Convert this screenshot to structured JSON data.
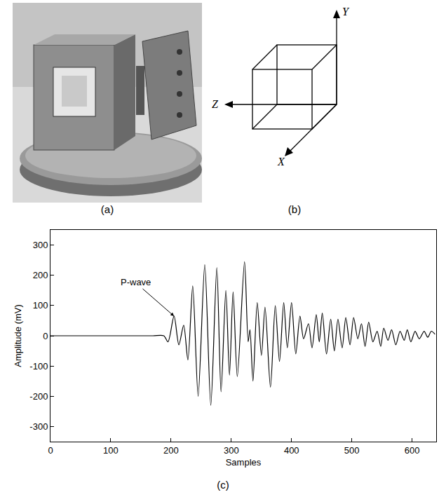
{
  "figure": {
    "panels": [
      "(a)",
      "(b)",
      "(c)"
    ],
    "diagram": {
      "x": "X",
      "y": "Y",
      "z": "Z"
    }
  },
  "chart_data": {
    "type": "line",
    "xlabel": "Samples",
    "ylabel": "Amplitude (mV)",
    "x": [
      0,
      60,
      120,
      170,
      188,
      195,
      205,
      213,
      221,
      228,
      236,
      245,
      256,
      266,
      276,
      283,
      291,
      297,
      303,
      310,
      322,
      328,
      331,
      336,
      343,
      350,
      356,
      365,
      373,
      380,
      387,
      393,
      400,
      407,
      414,
      420,
      428,
      434,
      441,
      446,
      451,
      458,
      465,
      471,
      477,
      484,
      490,
      497,
      503,
      510,
      516,
      522,
      528,
      535,
      542,
      548,
      553,
      560,
      566,
      573,
      580,
      587,
      592,
      598,
      605,
      612,
      620,
      626,
      632,
      638
    ],
    "values": [
      0,
      0,
      0,
      0,
      0,
      -20,
      65,
      -30,
      35,
      -80,
      165,
      -200,
      235,
      -230,
      225,
      -185,
      150,
      -130,
      145,
      -135,
      245,
      -20,
      20,
      -150,
      110,
      -65,
      95,
      -170,
      100,
      -85,
      110,
      -40,
      110,
      -60,
      65,
      -10,
      40,
      -40,
      70,
      -20,
      75,
      -60,
      55,
      -50,
      55,
      -40,
      60,
      -30,
      60,
      -10,
      40,
      -35,
      45,
      -20,
      15,
      -35,
      25,
      -15,
      20,
      -30,
      15,
      -15,
      20,
      -20,
      15,
      -10,
      15,
      -5,
      15,
      5
    ],
    "color": "#000000",
    "xlim": [
      0,
      640
    ],
    "xticks": [
      0,
      100,
      200,
      300,
      400,
      500,
      600
    ],
    "ylim": [
      -350,
      350
    ],
    "yticks": [
      -300,
      -200,
      -100,
      0,
      100,
      200,
      300
    ],
    "grid": false,
    "annotations": [
      {
        "text": "P-wave",
        "x": 205,
        "y": 65
      }
    ]
  }
}
